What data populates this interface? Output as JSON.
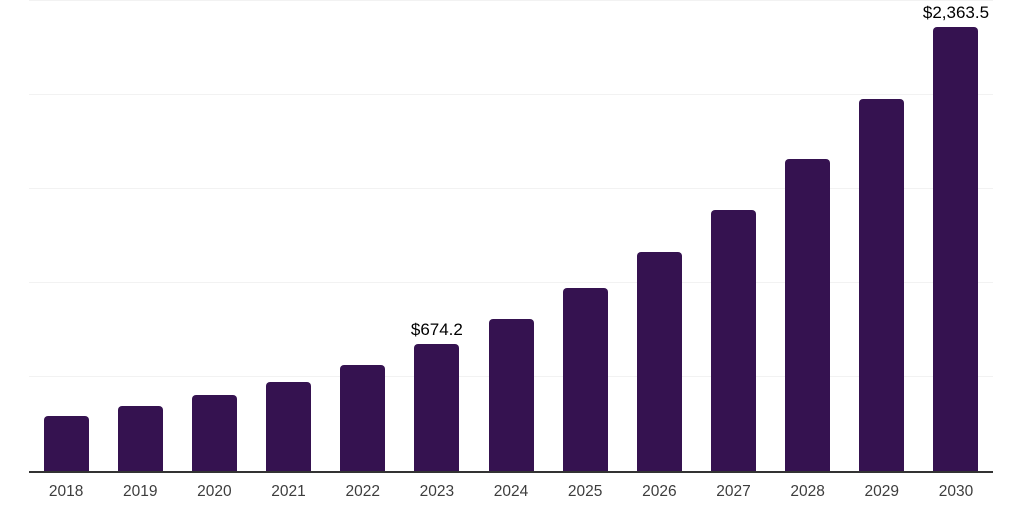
{
  "chart_data": {
    "type": "bar",
    "title": "",
    "xlabel": "",
    "ylabel": "",
    "categories": [
      "2018",
      "2019",
      "2020",
      "2021",
      "2022",
      "2023",
      "2024",
      "2025",
      "2026",
      "2027",
      "2028",
      "2029",
      "2030"
    ],
    "values": [
      292,
      346,
      406,
      475,
      562,
      674.2,
      808,
      975,
      1165,
      1390,
      1660,
      1980,
      2363.5
    ],
    "data_labels": {
      "2023": "$674.2",
      "2030": "$2,363.5"
    },
    "ylim": [
      0,
      2500
    ],
    "gridline_step": 500,
    "y_tick_labels": "none",
    "grid": "horizontal",
    "legend": "none",
    "colors": {
      "bar": "#351250",
      "gridline": "#f2f2f2",
      "axis_line": "#333333",
      "value_label": "#000000",
      "tick_label": "#3d3d3d",
      "background": "#ffffff"
    }
  }
}
